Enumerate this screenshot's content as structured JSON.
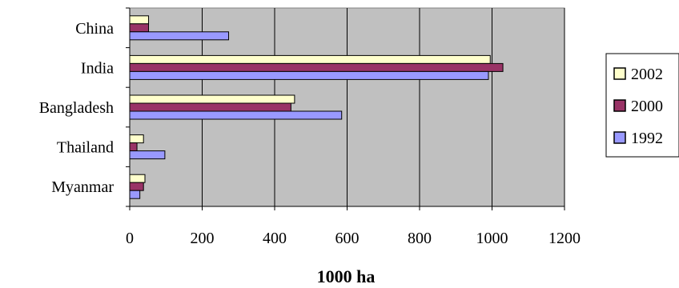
{
  "chart_data": {
    "type": "bar",
    "orientation": "horizontal",
    "categories": [
      "China",
      "India",
      "Bangladesh",
      "Thailand",
      "Myanmar"
    ],
    "series": [
      {
        "name": "2002",
        "color": "#FFFFCC",
        "values": [
          52,
          995,
          455,
          38,
          42
        ]
      },
      {
        "name": "2000",
        "color": "#993366",
        "values": [
          52,
          1030,
          445,
          20,
          38
        ]
      },
      {
        "name": "1992",
        "color": "#9999FF",
        "values": [
          273,
          990,
          585,
          97,
          28
        ]
      }
    ],
    "xlabel": "1000 ha",
    "xlim": [
      0,
      1200
    ],
    "xticks": [
      "0",
      "200",
      "400",
      "600",
      "800",
      "1000",
      "1200"
    ],
    "grid": true,
    "plot_background": "#C0C0C0",
    "legend_position": "right"
  }
}
